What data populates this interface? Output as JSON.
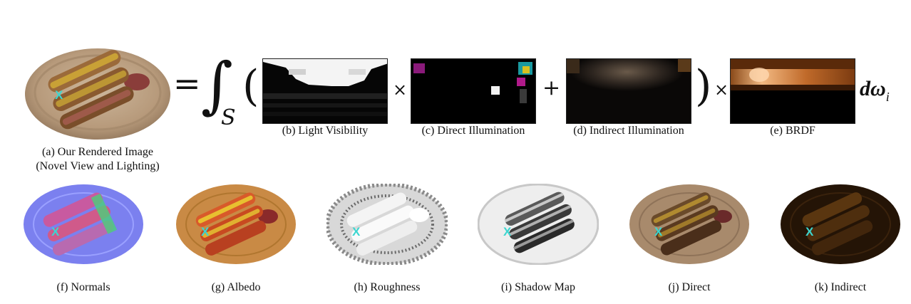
{
  "equation": {
    "equals": "=",
    "integral": "∫",
    "domain": "S",
    "open_paren": "(",
    "close_paren": ")",
    "times": "×",
    "plus": "+",
    "differential_d": "d",
    "omega": "ω",
    "subscript": "i"
  },
  "marker": "X",
  "captions": {
    "rendered_line1": "(a) Our Rendered Image",
    "rendered_line2": "(Novel View and Lighting)",
    "light_visibility": "(b) Light Visibility",
    "direct_illumination": "(c) Direct Illumination",
    "indirect_illumination": "(d) Indirect Illumination",
    "brdf": "(e) BRDF",
    "normals": "(f) Normals",
    "albedo": "(g) Albedo",
    "roughness": "(h) Roughness",
    "shadow_map": "(i) Shadow Map",
    "direct": "(j) Direct",
    "indirect": "(k) Indirect"
  },
  "colors": {
    "marker": "#3cd6d0",
    "plate_rendered": "#b89a7c",
    "plate_albedo": "#c98a45",
    "brdf_highlight": "#f2b982"
  }
}
